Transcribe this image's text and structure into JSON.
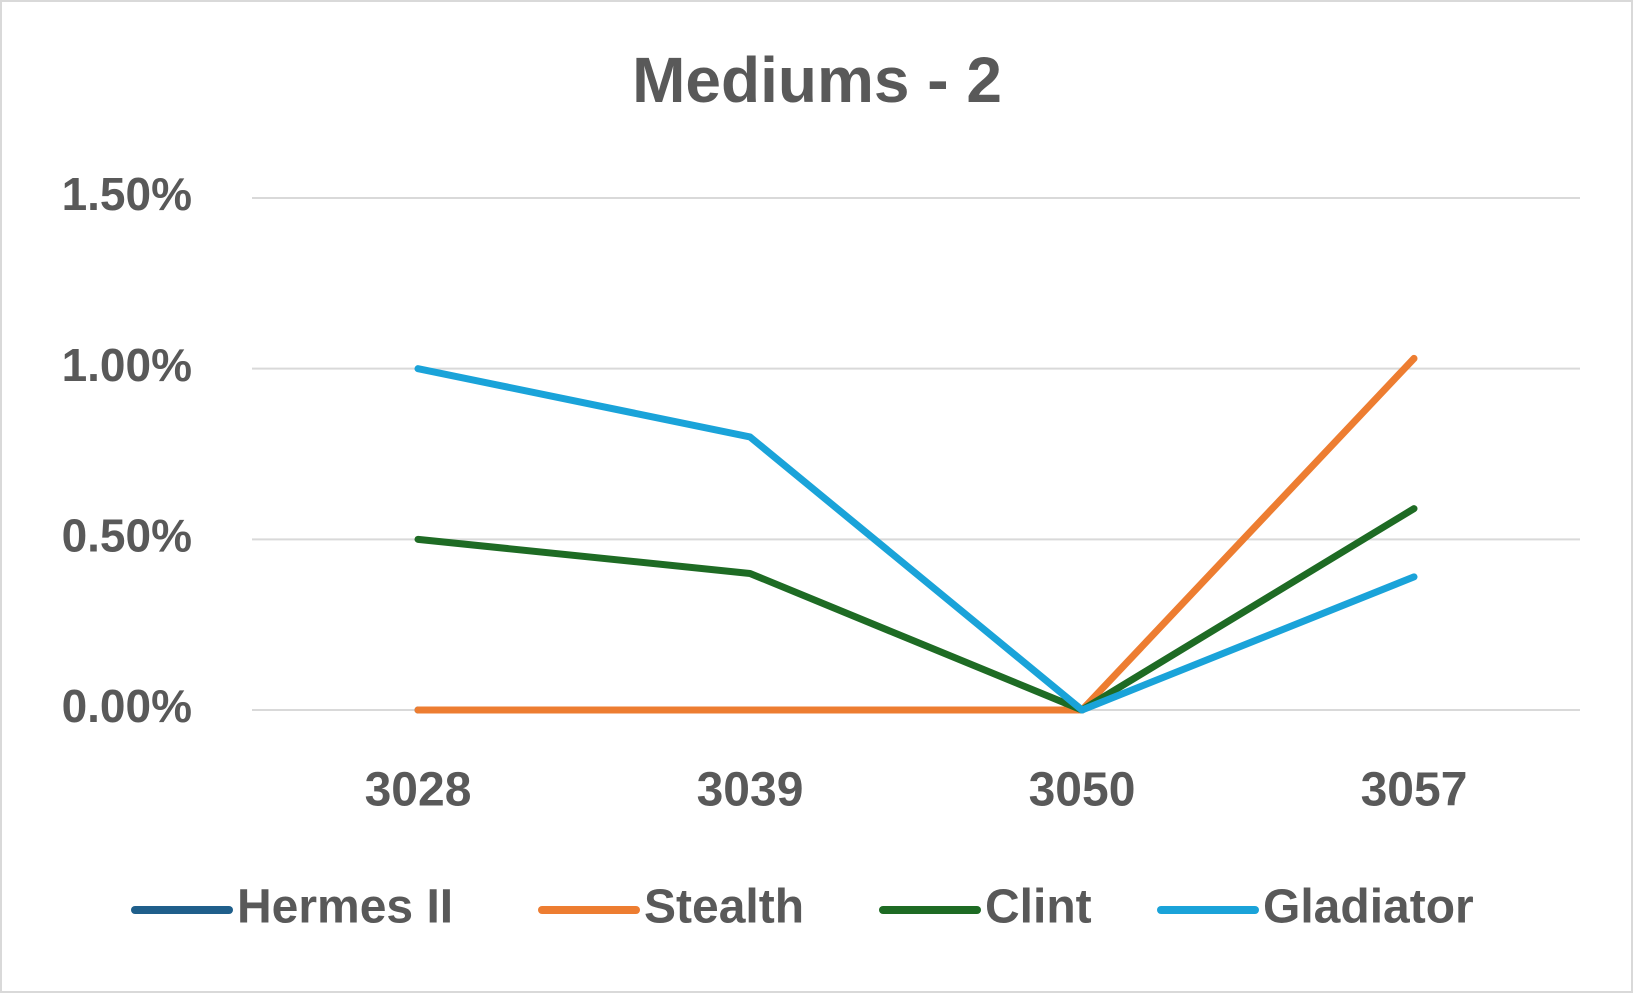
{
  "chart_data": {
    "type": "line",
    "title": "Mediums - 2",
    "categories": [
      "3028",
      "3039",
      "3050",
      "3057"
    ],
    "series": [
      {
        "name": "Hermes II",
        "color": "#1f5f8b",
        "values": [
          0,
          0,
          0,
          null
        ]
      },
      {
        "name": "Stealth",
        "color": "#ed7d31",
        "values": [
          0,
          0,
          0,
          1.03
        ]
      },
      {
        "name": "Clint",
        "color": "#1e6b24",
        "values": [
          0.5,
          0.4,
          0,
          0.59
        ]
      },
      {
        "name": "Gladiator",
        "color": "#1aa3d9",
        "values": [
          1.0,
          0.8,
          0,
          0.39
        ]
      }
    ],
    "ylim": [
      0,
      1.5
    ],
    "yticks": [
      {
        "value": 0,
        "label": "0.00%"
      },
      {
        "value": 0.5,
        "label": "0.50%"
      },
      {
        "value": 1.0,
        "label": "1.00%"
      },
      {
        "value": 1.5,
        "label": "1.50%"
      }
    ],
    "grid": true,
    "legend": "bottom"
  }
}
